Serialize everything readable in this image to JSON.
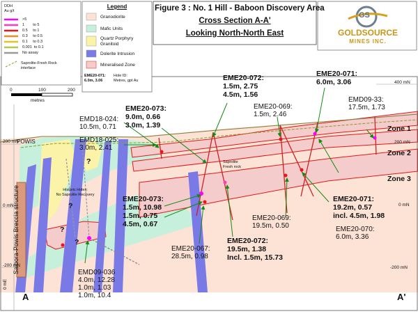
{
  "header": {
    "title_line1": "Figure 3 : No. 1 Hill - Baboon Discovery Area",
    "title_line2": "Cross Section A-A'",
    "title_line3": "Looking North-North East"
  },
  "logo": {
    "mark": "GS",
    "name": "GOLDSOURCE",
    "sub": "MINES INC."
  },
  "ddh_legend": {
    "title": "DDH",
    "unit": "Au g/t",
    "items": [
      {
        "range": ">5",
        "color": "#ff00ff"
      },
      {
        "range": "1        to 5",
        "color": "#ff3cbe"
      },
      {
        "range": "0.5     to 1",
        "color": "#e8141e"
      },
      {
        "range": "0.3     to 0.5",
        "color": "#f08c28"
      },
      {
        "range": "0.1     to 0.3",
        "color": "#dcc81e"
      },
      {
        "range": "0.001  to 0.1",
        "color": "#b4c850"
      },
      {
        "range": "No assay",
        "color": "#9a9a9a"
      }
    ],
    "interface_label_1": "Saprolite-Fresh Rock",
    "interface_label_2": "interface"
  },
  "legend": {
    "title": "Legend",
    "items": [
      {
        "label": "Granodiorite",
        "color": "#fde2d6"
      },
      {
        "label": "Mafic Units",
        "color": "#c6f0dc"
      },
      {
        "label": "Quartz Porphyry",
        "color": "#fbf3a8"
      },
      {
        "label": "Granitoid",
        "color": "#fbf3a8"
      },
      {
        "label": "Dolerite Intrusion",
        "color": "#7a7ae6"
      },
      {
        "label": "Mineralised Zone",
        "color": "#f4cccc"
      }
    ],
    "hole_example": "EME20-071:",
    "hole_example_values": "6.0m, 3.06",
    "hole_id_label": "Hole ID:",
    "hole_units_label": "Metres, gpt Au"
  },
  "scale_bar": {
    "ticks": [
      "0",
      "100",
      "200"
    ],
    "unit": "metres"
  },
  "elevations": {
    "right": [
      "400 mN",
      "200 mN",
      "0 mN",
      "-200 mN"
    ],
    "left": [
      "200 mN",
      "0 mN",
      "-200 mN"
    ],
    "bottom_left": "0 mE"
  },
  "section_ends": {
    "left": "A",
    "right": "A'"
  },
  "places": {
    "powis": "POWIS",
    "breccia": "Saibora-Powis Breccia structure"
  },
  "zones": [
    "Zone 1",
    "Zone 2",
    "Zone 3"
  ],
  "map_notes": {
    "historic_1": "Historic Holes:",
    "historic_2": "No Saprolite Recovery",
    "saprolite_1": "Saprolite",
    "saprolite_2": "Fresh rock",
    "question": "?"
  },
  "drill_labels": [
    {
      "id": "EMD18-024:",
      "values": [
        "10.5m, 0.71"
      ],
      "bold": false
    },
    {
      "id": "EMD18-025:",
      "values": [
        "3.0m, 2.41"
      ],
      "bold": false
    },
    {
      "id": "EME20-073:",
      "values": [
        "9.0m, 0.66",
        "3.0m, 1.39"
      ],
      "bold": true
    },
    {
      "id": "EME20-072:",
      "values": [
        "1.5m, 2.75",
        "4.5m, 1.56"
      ],
      "bold": true
    },
    {
      "id": "EME20-069:",
      "values": [
        "1.5m, 2.46"
      ],
      "bold": false
    },
    {
      "id": "EME20-071:",
      "values": [
        "6.0m, 3.06"
      ],
      "bold": true
    },
    {
      "id": "EMD09-33:",
      "values": [
        "17.5m, 1.73"
      ],
      "bold": false
    },
    {
      "id": "EME20-073:",
      "values": [
        "1.5m, 10.98",
        "1.5m, 0.75",
        "4.5m, 0.67"
      ],
      "bold": true
    },
    {
      "id": "EME20-069:",
      "values": [
        "19.5m, 0.50"
      ],
      "bold": false
    },
    {
      "id": "EME20-072:",
      "values": [
        "19.5m, 1.38",
        "Incl. 1.5m, 15.73"
      ],
      "bold": true
    },
    {
      "id": "EME20-067:",
      "values": [
        "28.5m, 0.98"
      ],
      "bold": false
    },
    {
      "id": "EME20-071:",
      "values": [
        "19.2m, 0.57",
        "incl. 4.5m, 1.98"
      ],
      "bold": true
    },
    {
      "id": "EME20-070:",
      "values": [
        "6.0m, 3.36"
      ],
      "bold": false
    },
    {
      "id": "EMD09-036",
      "values": [
        "4.0m, 12.28",
        "1.0m, 1.03",
        "1.0m, 10.4"
      ],
      "bold": false
    }
  ]
}
